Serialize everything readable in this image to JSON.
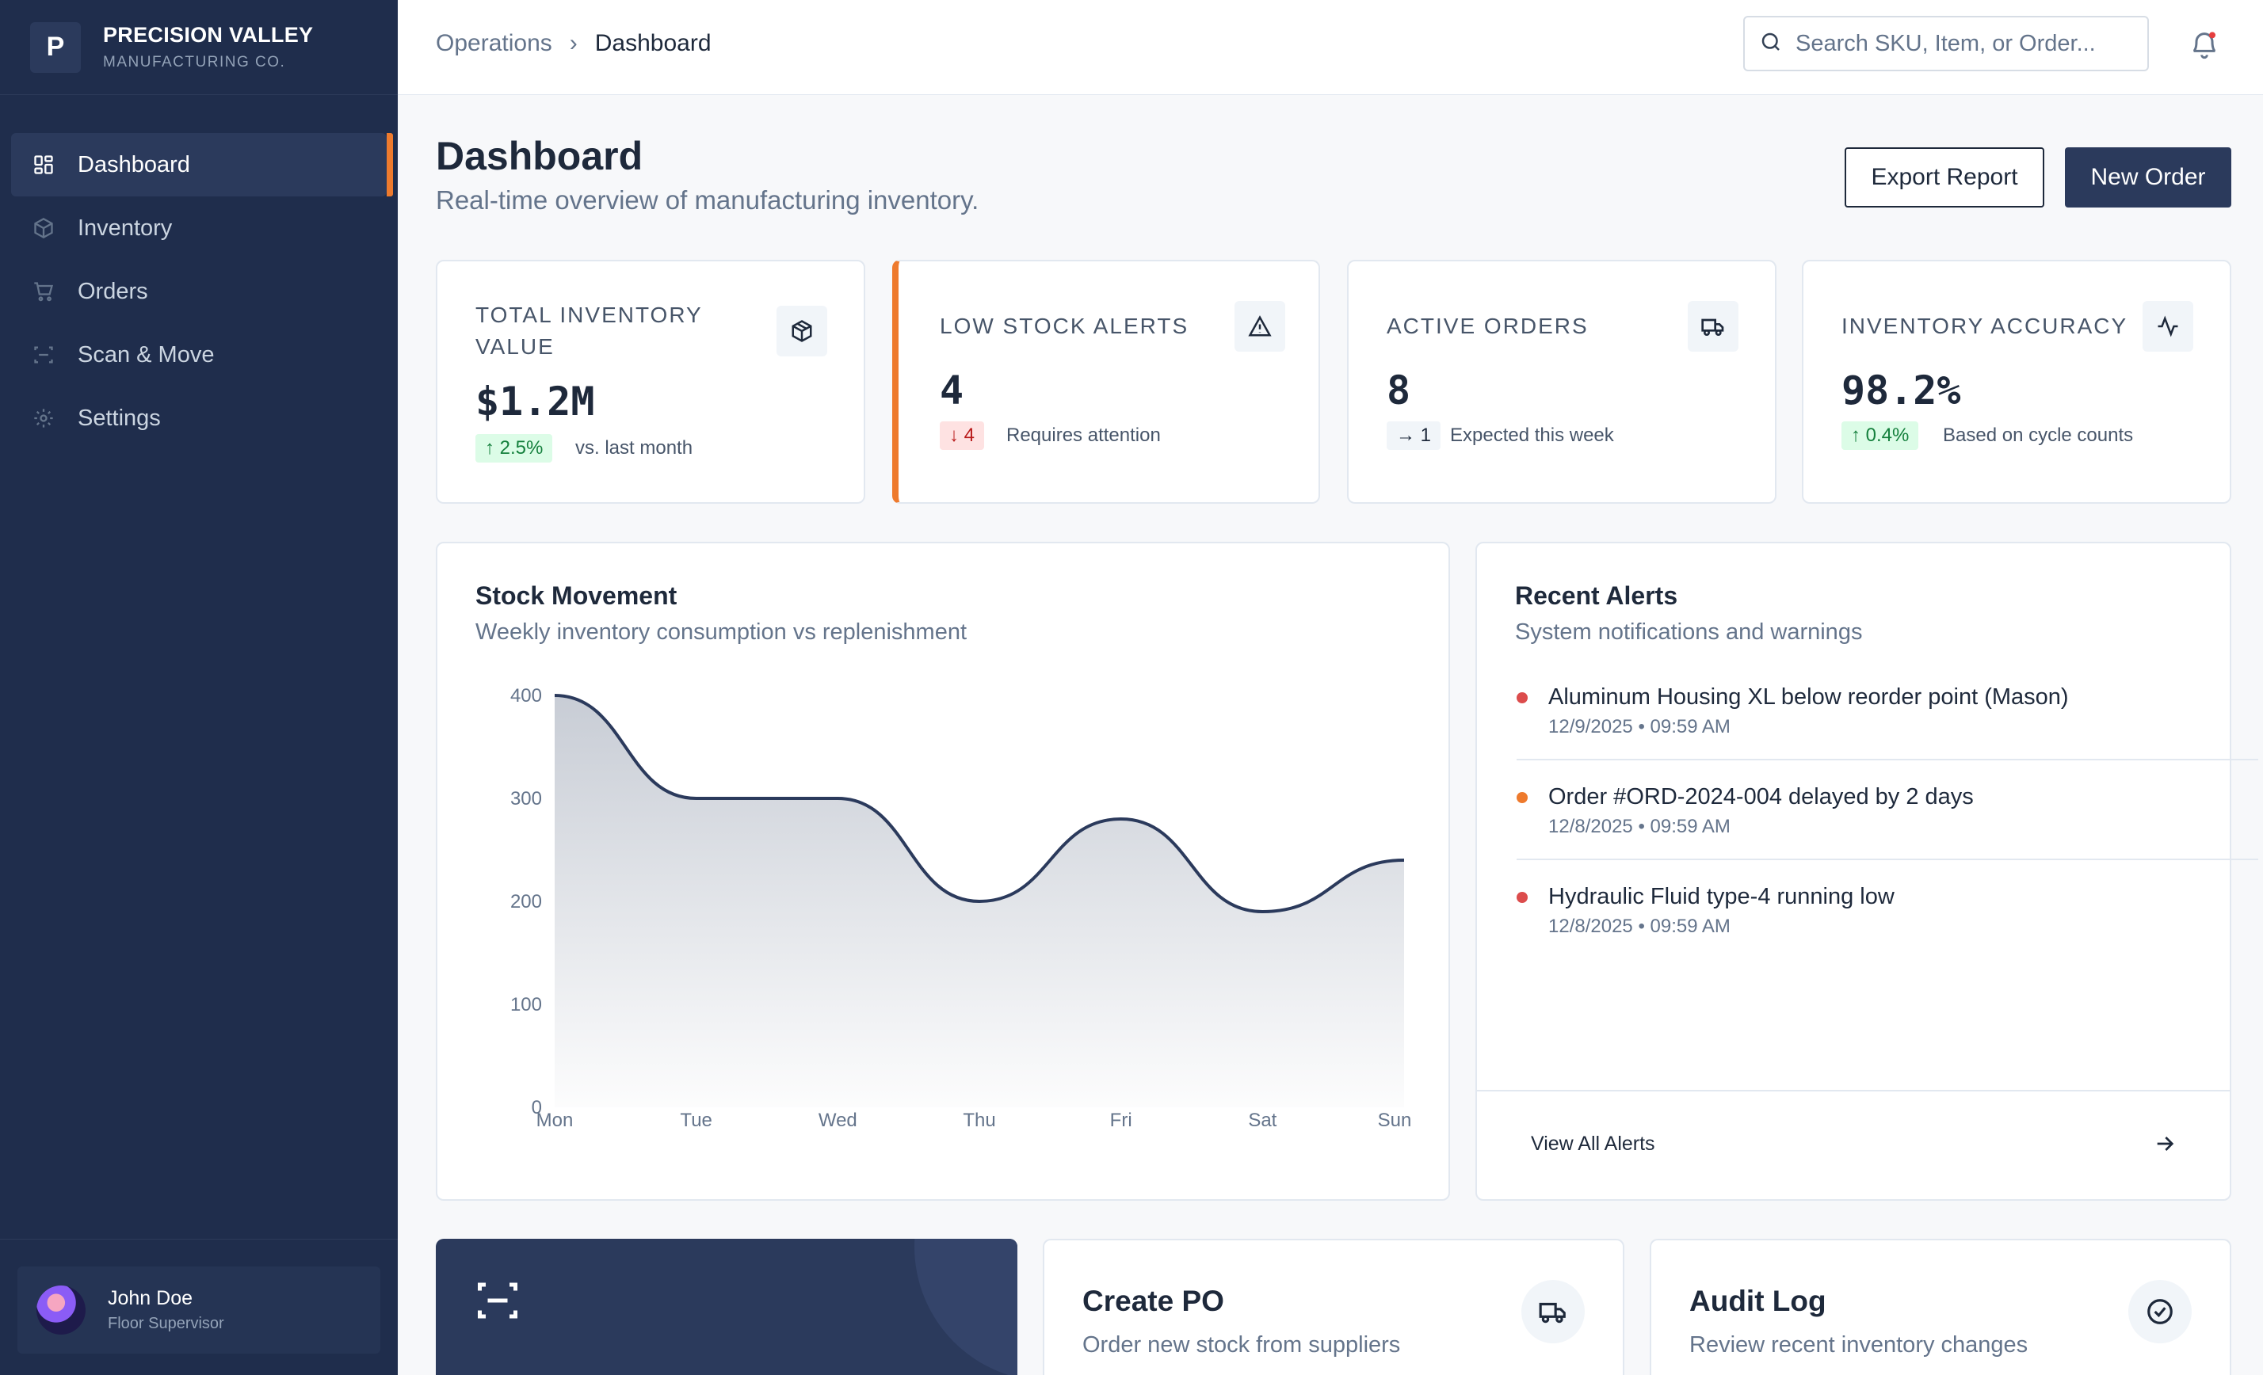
{
  "brand": {
    "initial": "P",
    "name": "PRECISION VALLEY",
    "sub": "MANUFACTURING CO."
  },
  "sidebar": {
    "items": [
      {
        "label": "Dashboard",
        "icon": "grid-icon",
        "active": true
      },
      {
        "label": "Inventory",
        "icon": "box-icon"
      },
      {
        "label": "Orders",
        "icon": "cart-icon"
      },
      {
        "label": "Scan & Move",
        "icon": "scan-icon"
      },
      {
        "label": "Settings",
        "icon": "gear-icon"
      }
    ],
    "user": {
      "name": "John Doe",
      "role": "Floor Supervisor"
    }
  },
  "header": {
    "breadcrumb": [
      "Operations",
      "Dashboard"
    ],
    "search_placeholder": "Search SKU, Item, or Order..."
  },
  "page": {
    "title": "Dashboard",
    "subtitle": "Real-time overview of manufacturing inventory.",
    "export_label": "Export Report",
    "new_order_label": "New Order"
  },
  "stats": [
    {
      "label": "TOTAL INVENTORY VALUE",
      "value": "$1.2M",
      "delta": "↑ 2.5%",
      "note": "vs. last month",
      "icon": "package-icon"
    },
    {
      "label": "LOW STOCK ALERTS",
      "value": "4",
      "delta": "↓ 4",
      "note": "Requires attention",
      "icon": "warning-icon"
    },
    {
      "label": "ACTIVE ORDERS",
      "value": "8",
      "delta": "→ 1",
      "note": "Expected this week",
      "icon": "truck-icon"
    },
    {
      "label": "INVENTORY ACCURACY",
      "value": "98.2%",
      "delta": "↑ 0.4%",
      "note": "Based on cycle counts",
      "icon": "activity-icon"
    }
  ],
  "stock_movement": {
    "title": "Stock Movement",
    "subtitle": "Weekly inventory consumption vs replenishment"
  },
  "chart_data": {
    "type": "area",
    "categories": [
      "Mon",
      "Tue",
      "Wed",
      "Thu",
      "Fri",
      "Sat",
      "Sun"
    ],
    "values": [
      400,
      300,
      300,
      200,
      280,
      190,
      240
    ],
    "yticks": [
      0,
      100,
      200,
      300,
      400
    ],
    "ylim": [
      0,
      400
    ],
    "grid": false,
    "colors": {
      "line": "#2b3a5c",
      "fill": "#c5cad3"
    }
  },
  "alerts": {
    "title": "Recent Alerts",
    "subtitle": "System notifications and warnings",
    "items": [
      {
        "title": "Aluminum Housing XL below reorder point (Mason)",
        "time": "12/9/2025 • 09:59 AM",
        "color": "#dc4c4c"
      },
      {
        "title": "Order #ORD-2024-004 delayed by 2 days",
        "time": "12/8/2025 • 09:59 AM",
        "color": "#ee7a2d"
      },
      {
        "title": "Hydraulic Fluid type-4 running low",
        "time": "12/8/2025 • 09:59 AM",
        "color": "#dc4c4c"
      }
    ],
    "view_all": "View All Alerts"
  },
  "quick": [
    {
      "title": "Create PO",
      "subtitle": "Order new stock from suppliers",
      "icon": "truck-icon"
    },
    {
      "title": "Audit Log",
      "subtitle": "Review recent inventory changes",
      "icon": "check-circle-icon"
    }
  ],
  "colors": {
    "sidebar": "#1f2d4c",
    "accent": "#ee7a2d",
    "primary": "#2b3a5c"
  }
}
